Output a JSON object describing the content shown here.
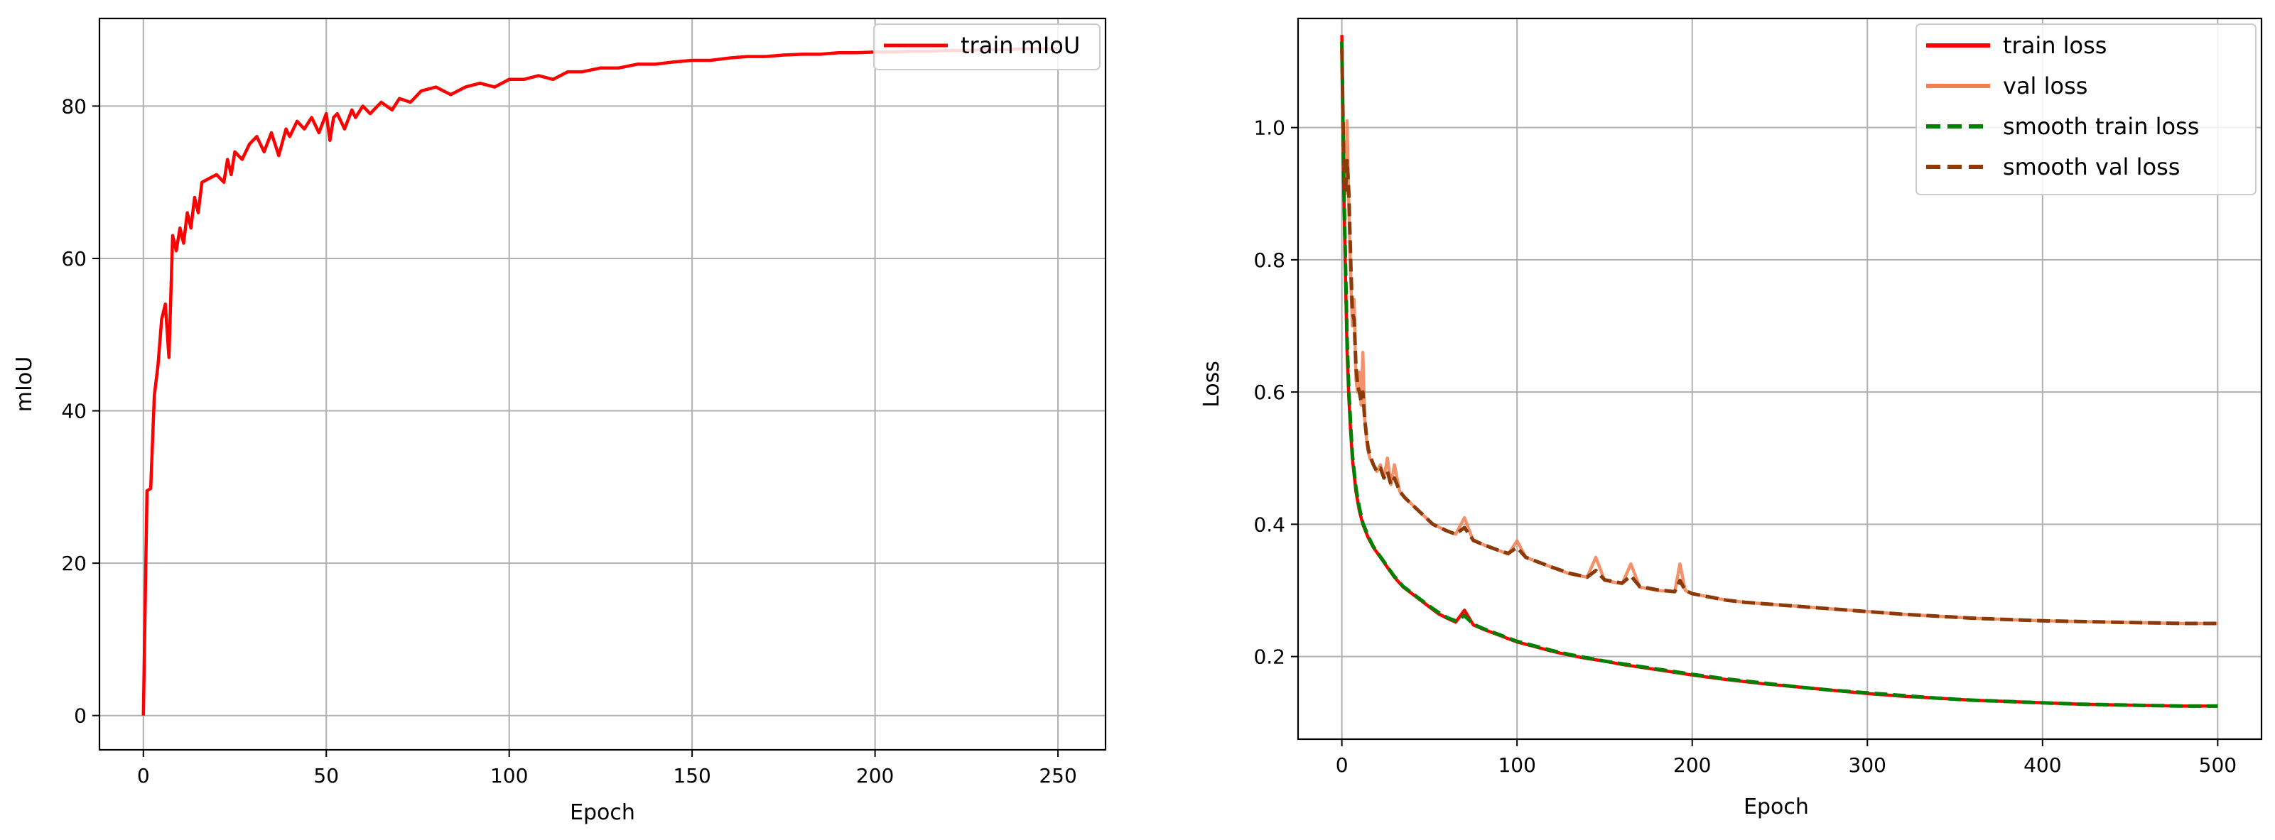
{
  "colors": {
    "train_miou": "#ff0000",
    "train_loss": "#ff0000",
    "val_loss": "#f07f50",
    "smooth_train_loss": "#008000",
    "smooth_val_loss": "#8b3a0a",
    "grid": "#b0b0b0"
  },
  "chart_data": [
    {
      "type": "line",
      "title": "",
      "xlabel": "Epoch",
      "ylabel": "mIoU",
      "xlim": [
        -12,
        263
      ],
      "ylim": [
        -4.5,
        91.5
      ],
      "xticks": [
        0,
        50,
        100,
        150,
        200,
        250
      ],
      "yticks": [
        0,
        20,
        40,
        60,
        80
      ],
      "grid": true,
      "legend_position": "top-right",
      "series": [
        {
          "name": "train mIoU",
          "style": "solid",
          "x": [
            0,
            1,
            2,
            3,
            4,
            5,
            6,
            7,
            8,
            9,
            10,
            11,
            12,
            13,
            14,
            15,
            16,
            18,
            20,
            22,
            23,
            24,
            25,
            27,
            29,
            31,
            33,
            35,
            37,
            39,
            40,
            42,
            44,
            46,
            48,
            50,
            51,
            52,
            53,
            55,
            57,
            58,
            60,
            62,
            65,
            68,
            70,
            73,
            76,
            80,
            84,
            88,
            92,
            96,
            100,
            104,
            108,
            112,
            116,
            120,
            125,
            130,
            135,
            140,
            145,
            150,
            155,
            160,
            165,
            170,
            175,
            180,
            185,
            190,
            195,
            200,
            205,
            210,
            215,
            220,
            225,
            230,
            235,
            240,
            245,
            250
          ],
          "values": [
            0,
            29.5,
            29.8,
            42.0,
            46.0,
            52.0,
            54.0,
            47.0,
            63.0,
            61.0,
            64.0,
            62.0,
            66.0,
            64.0,
            68.0,
            66.0,
            70.0,
            70.5,
            71.0,
            70.0,
            73.0,
            71.0,
            74.0,
            73.0,
            75.0,
            76.0,
            74.0,
            76.5,
            73.5,
            77.0,
            76.0,
            78.0,
            77.0,
            78.5,
            76.5,
            79.0,
            75.5,
            78.5,
            79.0,
            77.0,
            79.5,
            78.5,
            80.0,
            79.0,
            80.5,
            79.5,
            81.0,
            80.5,
            82.0,
            82.5,
            81.5,
            82.5,
            83.0,
            82.5,
            83.5,
            83.5,
            84.0,
            83.5,
            84.5,
            84.5,
            85.0,
            85.0,
            85.5,
            85.5,
            85.8,
            86.0,
            86.0,
            86.3,
            86.5,
            86.5,
            86.7,
            86.8,
            86.8,
            87.0,
            87.0,
            87.1,
            87.1,
            87.2,
            87.2,
            87.3,
            87.3,
            87.4,
            87.4,
            87.5,
            87.5,
            87.5
          ]
        }
      ]
    },
    {
      "type": "line",
      "title": "",
      "xlabel": "Epoch",
      "ylabel": "Loss",
      "xlim": [
        -25,
        525
      ],
      "ylim": [
        0.075,
        1.165
      ],
      "xticks": [
        0,
        100,
        200,
        300,
        400,
        500
      ],
      "yticks": [
        0.2,
        0.4,
        0.6,
        0.8,
        1.0
      ],
      "grid": true,
      "legend_position": "top-right",
      "series": [
        {
          "name": "train loss",
          "style": "solid",
          "x": [
            0,
            1,
            2,
            3,
            4,
            5,
            6,
            8,
            10,
            12,
            15,
            18,
            22,
            26,
            30,
            35,
            40,
            45,
            50,
            55,
            60,
            65,
            70,
            75,
            80,
            90,
            100,
            110,
            120,
            130,
            140,
            150,
            160,
            170,
            180,
            190,
            200,
            220,
            240,
            260,
            280,
            300,
            320,
            340,
            360,
            380,
            400,
            420,
            440,
            460,
            480,
            500
          ],
          "values": [
            1.14,
            0.92,
            0.78,
            0.66,
            0.59,
            0.54,
            0.5,
            0.45,
            0.42,
            0.4,
            0.38,
            0.365,
            0.35,
            0.335,
            0.32,
            0.305,
            0.295,
            0.285,
            0.275,
            0.265,
            0.258,
            0.252,
            0.27,
            0.248,
            0.242,
            0.232,
            0.222,
            0.215,
            0.208,
            0.202,
            0.197,
            0.193,
            0.188,
            0.184,
            0.18,
            0.176,
            0.172,
            0.165,
            0.159,
            0.154,
            0.149,
            0.144,
            0.14,
            0.137,
            0.134,
            0.132,
            0.13,
            0.128,
            0.127,
            0.126,
            0.125,
            0.125
          ]
        },
        {
          "name": "val loss",
          "style": "solid",
          "x": [
            0,
            1,
            2,
            3,
            4,
            5,
            6,
            7,
            8,
            9,
            10,
            11,
            12,
            13,
            14,
            15,
            16,
            18,
            20,
            22,
            24,
            26,
            28,
            30,
            33,
            36,
            40,
            44,
            48,
            52,
            56,
            60,
            65,
            70,
            75,
            80,
            85,
            90,
            95,
            100,
            105,
            110,
            120,
            130,
            140,
            145,
            150,
            160,
            165,
            170,
            180,
            190,
            193,
            196,
            200,
            210,
            220,
            230,
            240,
            250,
            260,
            270,
            280,
            290,
            300,
            320,
            340,
            360,
            380,
            400,
            420,
            440,
            460,
            480,
            500
          ],
          "values": [
            1.13,
            0.95,
            0.9,
            1.01,
            0.88,
            0.78,
            0.7,
            0.74,
            0.62,
            0.6,
            0.63,
            0.58,
            0.66,
            0.56,
            0.53,
            0.51,
            0.5,
            0.49,
            0.48,
            0.49,
            0.47,
            0.5,
            0.46,
            0.49,
            0.45,
            0.44,
            0.43,
            0.42,
            0.41,
            0.4,
            0.395,
            0.39,
            0.385,
            0.41,
            0.375,
            0.37,
            0.365,
            0.36,
            0.355,
            0.375,
            0.35,
            0.345,
            0.335,
            0.325,
            0.32,
            0.35,
            0.315,
            0.31,
            0.34,
            0.305,
            0.3,
            0.298,
            0.34,
            0.3,
            0.295,
            0.29,
            0.285,
            0.282,
            0.28,
            0.278,
            0.276,
            0.274,
            0.272,
            0.27,
            0.268,
            0.264,
            0.261,
            0.258,
            0.256,
            0.254,
            0.253,
            0.252,
            0.251,
            0.25,
            0.25
          ]
        },
        {
          "name": "smooth train loss",
          "style": "dashed",
          "x": [
            0,
            1,
            2,
            3,
            4,
            5,
            6,
            8,
            10,
            12,
            15,
            18,
            22,
            26,
            30,
            35,
            40,
            45,
            50,
            55,
            60,
            65,
            70,
            75,
            80,
            90,
            100,
            110,
            120,
            130,
            140,
            150,
            160,
            170,
            180,
            190,
            200,
            220,
            240,
            260,
            280,
            300,
            320,
            340,
            360,
            380,
            400,
            420,
            440,
            460,
            480,
            500
          ],
          "values": [
            1.13,
            0.93,
            0.8,
            0.68,
            0.6,
            0.55,
            0.505,
            0.455,
            0.425,
            0.402,
            0.382,
            0.366,
            0.351,
            0.336,
            0.321,
            0.306,
            0.296,
            0.286,
            0.276,
            0.267,
            0.259,
            0.254,
            0.262,
            0.249,
            0.243,
            0.233,
            0.223,
            0.216,
            0.209,
            0.203,
            0.198,
            0.193,
            0.189,
            0.185,
            0.181,
            0.177,
            0.173,
            0.166,
            0.16,
            0.154,
            0.149,
            0.145,
            0.141,
            0.137,
            0.134,
            0.132,
            0.13,
            0.128,
            0.127,
            0.126,
            0.125,
            0.125
          ]
        },
        {
          "name": "smooth val loss",
          "style": "dashed",
          "x": [
            0,
            1,
            2,
            3,
            4,
            5,
            6,
            7,
            8,
            9,
            10,
            11,
            12,
            13,
            14,
            15,
            16,
            18,
            20,
            22,
            24,
            26,
            28,
            30,
            33,
            36,
            40,
            44,
            48,
            52,
            56,
            60,
            65,
            70,
            75,
            80,
            85,
            90,
            95,
            100,
            105,
            110,
            120,
            130,
            140,
            145,
            150,
            160,
            165,
            170,
            180,
            190,
            193,
            196,
            200,
            210,
            220,
            230,
            240,
            250,
            260,
            270,
            280,
            290,
            300,
            320,
            340,
            360,
            380,
            400,
            420,
            440,
            460,
            480,
            500
          ],
          "values": [
            1.12,
            0.96,
            0.9,
            0.95,
            0.9,
            0.8,
            0.72,
            0.71,
            0.64,
            0.61,
            0.6,
            0.585,
            0.6,
            0.56,
            0.535,
            0.515,
            0.505,
            0.49,
            0.48,
            0.485,
            0.47,
            0.48,
            0.46,
            0.47,
            0.45,
            0.44,
            0.43,
            0.42,
            0.41,
            0.4,
            0.395,
            0.39,
            0.385,
            0.395,
            0.376,
            0.37,
            0.365,
            0.36,
            0.356,
            0.365,
            0.35,
            0.345,
            0.335,
            0.326,
            0.32,
            0.33,
            0.316,
            0.311,
            0.322,
            0.306,
            0.301,
            0.298,
            0.315,
            0.3,
            0.295,
            0.29,
            0.285,
            0.282,
            0.28,
            0.278,
            0.276,
            0.274,
            0.272,
            0.27,
            0.268,
            0.264,
            0.261,
            0.258,
            0.256,
            0.254,
            0.253,
            0.252,
            0.251,
            0.25,
            0.25
          ]
        }
      ]
    }
  ]
}
